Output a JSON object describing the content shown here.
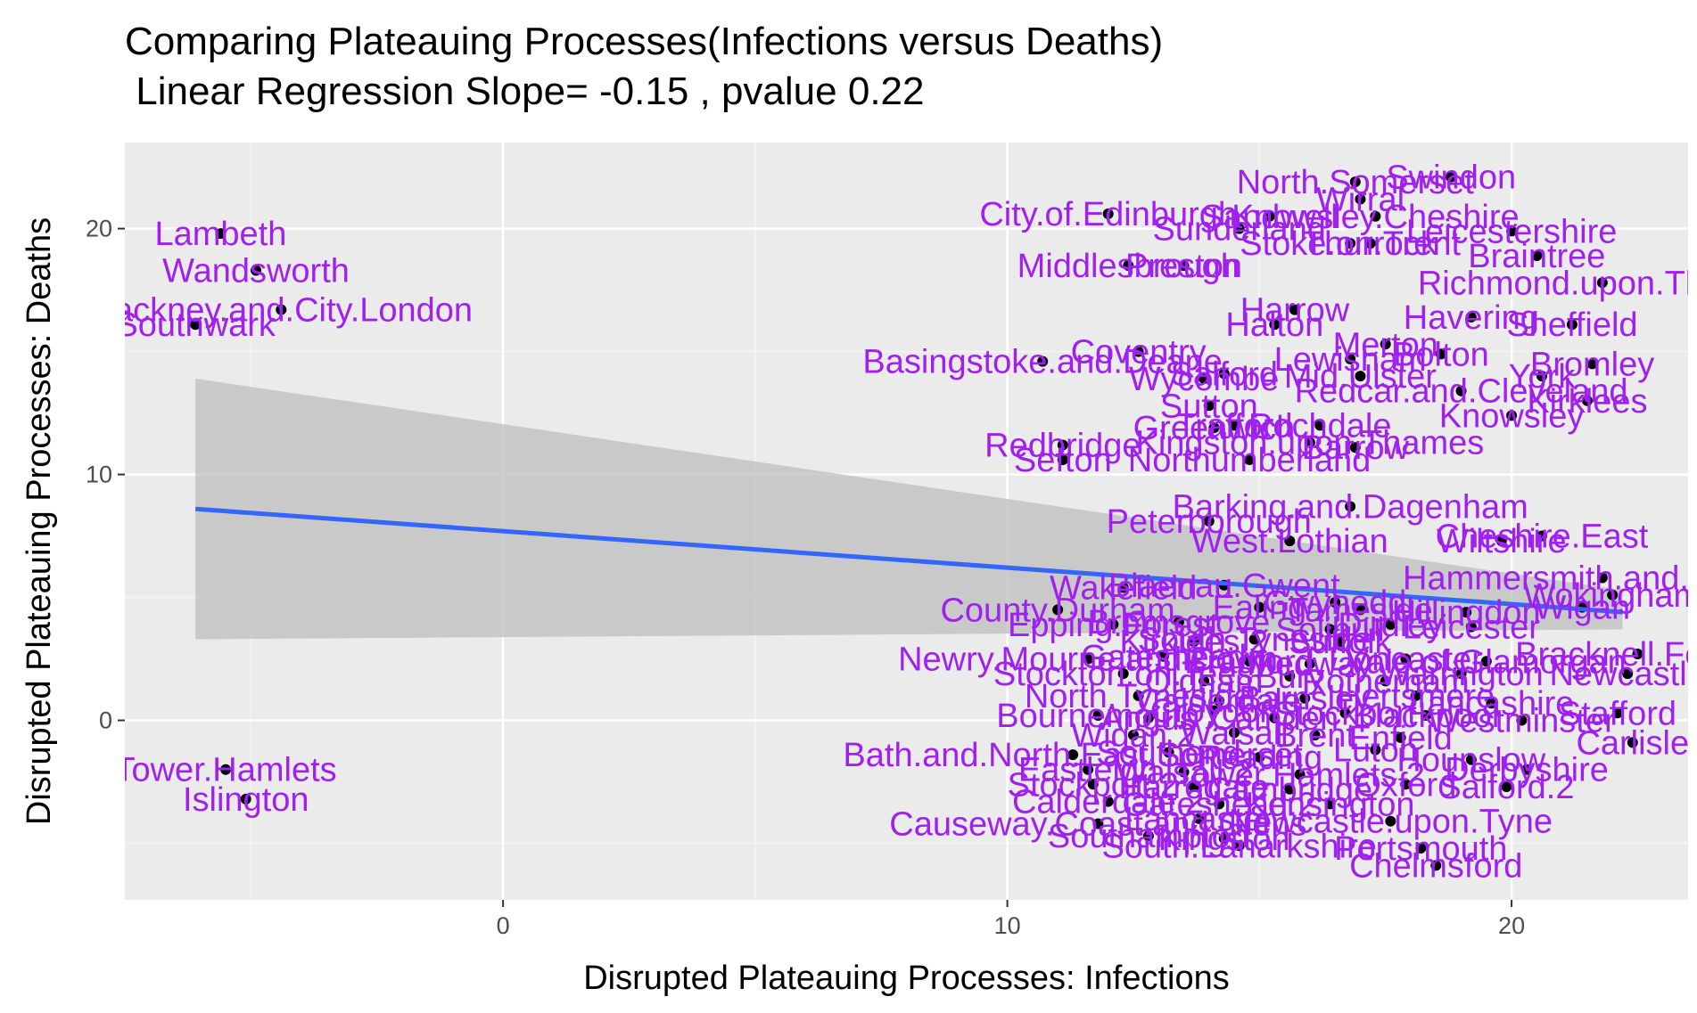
{
  "title_lines": [
    "Comparing Plateauing Processes(Infections versus Deaths)",
    " Linear Regression Slope= -0.15 , pvalue 0.22"
  ],
  "chart_data": {
    "type": "scatter",
    "title": "Comparing Plateauing Processes(Infections versus Deaths)\n Linear Regression Slope= -0.15 , pvalue 0.22",
    "xlabel": "Disrupted Plateauing Processes: Infections",
    "ylabel": "Disrupted Plateauing Processes: Deaths",
    "xlim": [
      -7.5,
      23.5
    ],
    "ylim": [
      -7.3,
      23.5
    ],
    "x_ticks": [
      0,
      10,
      20
    ],
    "y_ticks": [
      0,
      10,
      20
    ],
    "grid": true,
    "colors": {
      "panel": "#ebebeb",
      "grid_major": "#ffffff",
      "grid_minor": "#f5f5f5",
      "point": "#000000",
      "label": "#a020f0",
      "fit_line": "#3366ff",
      "ribbon": "#bdbdbd"
    },
    "regression": {
      "x": [
        -6.1,
        22.2
      ],
      "y": [
        8.6,
        4.4
      ],
      "ci_low": [
        3.3,
        3.7
      ],
      "ci_high": [
        13.9,
        5.3
      ]
    },
    "points": [
      {
        "label": "Lambeth",
        "x": -5.6,
        "y": 19.8
      },
      {
        "label": "Wandsworth",
        "x": -4.9,
        "y": 18.3
      },
      {
        "label": "Hackney.and.City.London",
        "x": -4.4,
        "y": 16.7
      },
      {
        "label": "Southwark",
        "x": -6.1,
        "y": 16.1
      },
      {
        "label": "Tower.Hamlets",
        "x": -5.5,
        "y": -2.0
      },
      {
        "label": "Islington",
        "x": -5.1,
        "y": -3.2
      },
      {
        "label": "North.Somerset",
        "x": 16.9,
        "y": 21.9
      },
      {
        "label": "Swindon",
        "x": 18.8,
        "y": 22.1
      },
      {
        "label": "Wirral",
        "x": 17.0,
        "y": 21.2
      },
      {
        "label": "City.of.Edinburgh",
        "x": 12.0,
        "y": 20.6
      },
      {
        "label": "Sandwell",
        "x": 15.2,
        "y": 20.5
      },
      {
        "label": "Knowsley.Cheshire",
        "x": 17.3,
        "y": 20.5
      },
      {
        "label": "Leicestershire",
        "x": 20.0,
        "y": 19.9
      },
      {
        "label": "Sunderland",
        "x": 14.6,
        "y": 20.0
      },
      {
        "label": "Stoke.on.Trent",
        "x": 16.8,
        "y": 19.4
      },
      {
        "label": "Thurrock",
        "x": 17.2,
        "y": 19.4
      },
      {
        "label": "Braintree",
        "x": 20.5,
        "y": 18.9
      },
      {
        "label": "Middlesbrough",
        "x": 12.4,
        "y": 18.5
      },
      {
        "label": "Preston",
        "x": 13.5,
        "y": 18.5
      },
      {
        "label": "Richmond.upon.Thames",
        "x": 21.8,
        "y": 17.8
      },
      {
        "label": "Harrow",
        "x": 15.7,
        "y": 16.7
      },
      {
        "label": "Halton",
        "x": 15.3,
        "y": 16.1
      },
      {
        "label": "Havering",
        "x": 19.2,
        "y": 16.4
      },
      {
        "label": "Sheffield",
        "x": 21.2,
        "y": 16.1
      },
      {
        "label": "Basingstoke.and.Deane",
        "x": 10.7,
        "y": 14.6
      },
      {
        "label": "Coventry",
        "x": 12.6,
        "y": 15.0
      },
      {
        "label": "Merton",
        "x": 17.5,
        "y": 15.3
      },
      {
        "label": "Lewisham",
        "x": 16.8,
        "y": 14.7
      },
      {
        "label": "Bolton",
        "x": 18.6,
        "y": 14.9
      },
      {
        "label": "Bromley",
        "x": 21.6,
        "y": 14.5
      },
      {
        "label": "Wycombe",
        "x": 13.9,
        "y": 13.9
      },
      {
        "label": "Salford",
        "x": 14.3,
        "y": 14.1
      },
      {
        "label": "Mid.Ulster",
        "x": 17.0,
        "y": 14.0
      },
      {
        "label": "Redcar.and.Cleveland",
        "x": 19.0,
        "y": 13.4
      },
      {
        "label": "York",
        "x": 20.6,
        "y": 14.0
      },
      {
        "label": "Sutton",
        "x": 14.0,
        "y": 12.8
      },
      {
        "label": "Kirklees",
        "x": 21.5,
        "y": 13.0
      },
      {
        "label": "Knowsley",
        "x": 20.0,
        "y": 12.4
      },
      {
        "label": "Greenwich",
        "x": 14.1,
        "y": 11.9
      },
      {
        "label": "Trafford",
        "x": 14.5,
        "y": 12.0
      },
      {
        "label": "Rochdale",
        "x": 16.2,
        "y": 12.0
      },
      {
        "label": "Redbridge",
        "x": 11.1,
        "y": 11.2
      },
      {
        "label": "Kingston.upon.Thames",
        "x": 16.0,
        "y": 11.3
      },
      {
        "label": "Barrow",
        "x": 16.9,
        "y": 11.1
      },
      {
        "label": "Sefton",
        "x": 11.1,
        "y": 10.6
      },
      {
        "label": "Northumberland",
        "x": 14.8,
        "y": 10.6
      },
      {
        "label": "Barking.and.Dagenham",
        "x": 16.8,
        "y": 8.7
      },
      {
        "label": "Peterborough",
        "x": 14.0,
        "y": 8.1
      },
      {
        "label": "West.Lothian",
        "x": 15.6,
        "y": 7.3
      },
      {
        "label": "Wiltshire",
        "x": 19.8,
        "y": 7.3
      },
      {
        "label": "Cheshire.East",
        "x": 20.6,
        "y": 7.5
      },
      {
        "label": "Hammersmith.and.Fulham",
        "x": 21.8,
        "y": 5.8
      },
      {
        "label": "Wakefield",
        "x": 12.3,
        "y": 5.4
      },
      {
        "label": "Blaenau.Gwent",
        "x": 14.3,
        "y": 5.5
      },
      {
        "label": "Wokingham",
        "x": 22.0,
        "y": 5.1
      },
      {
        "label": "County.Durham",
        "x": 11.0,
        "y": 4.5
      },
      {
        "label": "Ealing",
        "x": 15.0,
        "y": 4.6
      },
      {
        "label": "Gwynedd",
        "x": 16.5,
        "y": 4.8
      },
      {
        "label": "Tameside",
        "x": 17.0,
        "y": 4.5
      },
      {
        "label": "Hillingdon",
        "x": 19.1,
        "y": 4.4
      },
      {
        "label": "Wigan",
        "x": 21.4,
        "y": 4.6
      },
      {
        "label": "Epping.Forest",
        "x": 12.1,
        "y": 3.9
      },
      {
        "label": "Bromsgrove",
        "x": 13.4,
        "y": 4.0
      },
      {
        "label": "Solihull",
        "x": 16.4,
        "y": 3.7
      },
      {
        "label": "Dudley",
        "x": 17.6,
        "y": 3.9
      },
      {
        "label": "Leicester",
        "x": 19.2,
        "y": 3.8
      },
      {
        "label": "Kirklees.2",
        "x": 13.7,
        "y": 3.2
      },
      {
        "label": "South.Tyneside",
        "x": 14.9,
        "y": 3.3
      },
      {
        "label": "Suffolk",
        "x": 16.6,
        "y": 3.2
      },
      {
        "label": "Newry.Mourne.and.Down",
        "x": 11.6,
        "y": 2.5
      },
      {
        "label": "Gateshead",
        "x": 13.1,
        "y": 2.6
      },
      {
        "label": "Bradford",
        "x": 14.8,
        "y": 2.4
      },
      {
        "label": "Medway",
        "x": 16.0,
        "y": 2.3
      },
      {
        "label": "Doncaster",
        "x": 17.9,
        "y": 2.5
      },
      {
        "label": "Vale.of.Glamorgan",
        "x": 19.5,
        "y": 2.4
      },
      {
        "label": "Bracknell.Forest",
        "x": 22.5,
        "y": 2.7
      },
      {
        "label": "Stockton.on.Tees",
        "x": 12.3,
        "y": 1.9
      },
      {
        "label": "Oldham",
        "x": 13.9,
        "y": 1.6
      },
      {
        "label": "Bury",
        "x": 15.6,
        "y": 1.8
      },
      {
        "label": "Rotherham",
        "x": 17.5,
        "y": 1.6
      },
      {
        "label": "Warrington",
        "x": 19.0,
        "y": 1.9
      },
      {
        "label": "Newcastle",
        "x": 22.3,
        "y": 1.9
      },
      {
        "label": "North.Tyneside",
        "x": 12.6,
        "y": 1.0
      },
      {
        "label": "Calderdale",
        "x": 14.2,
        "y": 0.8
      },
      {
        "label": "Barnsley",
        "x": 15.9,
        "y": 0.9
      },
      {
        "label": "Hertsmere",
        "x": 18.1,
        "y": 1.0
      },
      {
        "label": "Lancashire",
        "x": 19.6,
        "y": 0.7
      },
      {
        "label": "Bournemouth",
        "x": 11.8,
        "y": 0.2
      },
      {
        "label": "Angus",
        "x": 12.8,
        "y": 0.1
      },
      {
        "label": "Croydon",
        "x": 14.1,
        "y": 0.4
      },
      {
        "label": "Camden",
        "x": 15.3,
        "y": 0.1
      },
      {
        "label": "Stockport",
        "x": 16.7,
        "y": 0.3
      },
      {
        "label": "Blackpool",
        "x": 18.3,
        "y": 0.2
      },
      {
        "label": "Westminster",
        "x": 20.2,
        "y": 0.0
      },
      {
        "label": "Stafford",
        "x": 22.1,
        "y": 0.3
      },
      {
        "label": "Wigan.2",
        "x": 12.5,
        "y": -0.6
      },
      {
        "label": "Walsall",
        "x": 14.5,
        "y": -0.5
      },
      {
        "label": "Brent",
        "x": 16.1,
        "y": -0.6
      },
      {
        "label": "Enfield",
        "x": 17.8,
        "y": -0.7
      },
      {
        "label": "Bath.and.North.East.Somerset",
        "x": 11.3,
        "y": -1.4
      },
      {
        "label": "Southend",
        "x": 13.2,
        "y": -1.3
      },
      {
        "label": "Reading",
        "x": 15.0,
        "y": -1.5
      },
      {
        "label": "Luton",
        "x": 17.3,
        "y": -1.2
      },
      {
        "label": "Hounslow",
        "x": 19.2,
        "y": -1.6
      },
      {
        "label": "Carlisle",
        "x": 22.4,
        "y": -0.9
      },
      {
        "label": "Eastleigh",
        "x": 11.6,
        "y": -2.0
      },
      {
        "label": "Walsall.2",
        "x": 13.5,
        "y": -2.1
      },
      {
        "label": "Tower.Hamlets.2",
        "x": 15.8,
        "y": -2.2
      },
      {
        "label": "Derbyshire",
        "x": 20.3,
        "y": -2.0
      },
      {
        "label": "Stockport.2",
        "x": 11.7,
        "y": -2.6
      },
      {
        "label": "Harrogate",
        "x": 13.7,
        "y": -2.7
      },
      {
        "label": "Cambridge",
        "x": 15.6,
        "y": -2.8
      },
      {
        "label": "Oxford",
        "x": 17.9,
        "y": -2.6
      },
      {
        "label": "Salford.2",
        "x": 19.9,
        "y": -2.7
      },
      {
        "label": "Calderdale.2",
        "x": 12.0,
        "y": -3.3
      },
      {
        "label": "Gateshead.2",
        "x": 14.2,
        "y": -3.4
      },
      {
        "label": "Kensington",
        "x": 16.4,
        "y": -3.4
      },
      {
        "label": "Causeway.Coast.and.Glens",
        "x": 11.8,
        "y": -4.2
      },
      {
        "label": "Lancaster",
        "x": 13.8,
        "y": -4.0
      },
      {
        "label": "Newcastle.upon.Tyne",
        "x": 17.6,
        "y": -4.1
      },
      {
        "label": "Southampton",
        "x": 12.8,
        "y": -4.7
      },
      {
        "label": "Kingston",
        "x": 14.3,
        "y": -4.8
      },
      {
        "label": "South.Lanarkshire",
        "x": 14.6,
        "y": -5.1
      },
      {
        "label": "Portsmouth",
        "x": 18.2,
        "y": -5.2
      },
      {
        "label": "Chelmsford",
        "x": 18.5,
        "y": -5.9
      }
    ]
  }
}
